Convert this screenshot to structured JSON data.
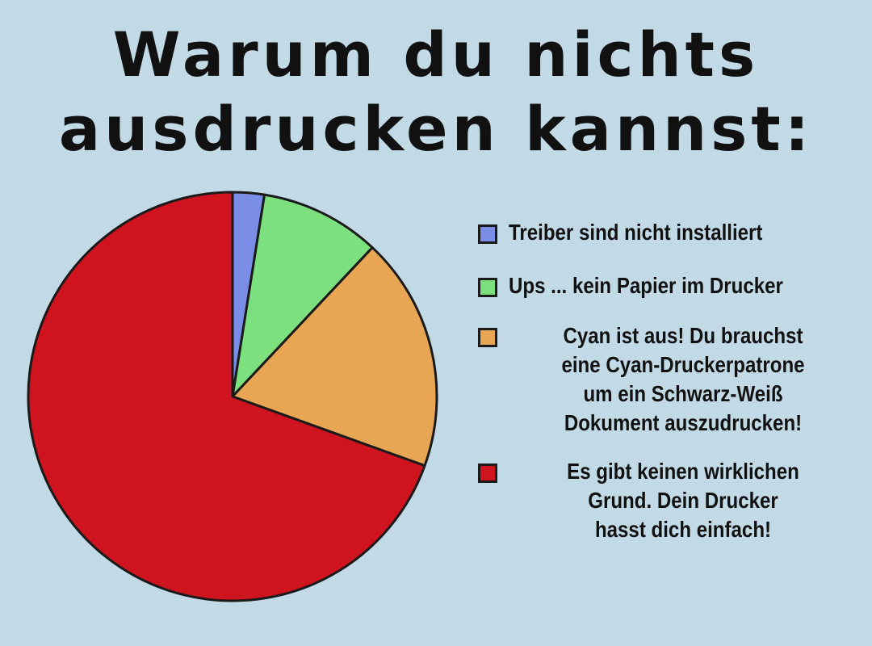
{
  "title": {
    "line1": "Warum du nichts",
    "line2": "ausdrucken kannst:"
  },
  "chart_data": {
    "type": "pie",
    "title": "Warum du nichts ausdrucken kannst:",
    "slices": [
      {
        "label": "Treiber sind nicht installiert",
        "value": 2.5,
        "color": "#7a8ee8"
      },
      {
        "label": "Ups ... kein Papier im Drucker",
        "value": 9.5,
        "color": "#7de07f"
      },
      {
        "label": "Cyan ist aus! Du brauchst\neine Cyan-Druckerpatrone\num ein Schwarz-Weiß\nDokument auszudrucken!",
        "value": 18.5,
        "color": "#e8a553"
      },
      {
        "label": "Es gibt keinen wirklichen\nGrund. Dein Drucker\nhasst dich einfach!",
        "value": 69.5,
        "color": "#d0141f"
      }
    ],
    "start": "12 o'clock",
    "direction": "clockwise",
    "legend_position": "right"
  }
}
